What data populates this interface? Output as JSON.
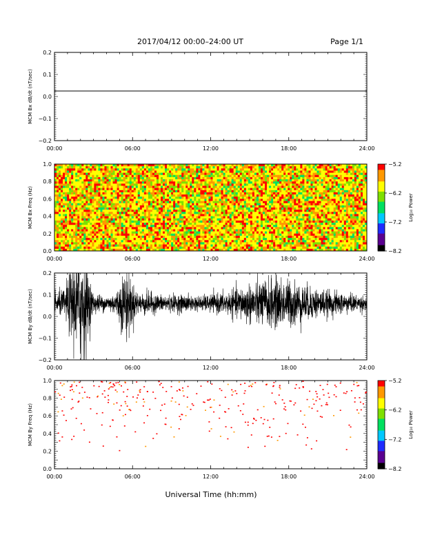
{
  "header": {
    "title": "2017/04/12  00:00–24:00 UT",
    "page_label": "Page 1/1"
  },
  "xaxis": {
    "label": "Universal Time (hh:mm)",
    "tick_labels": [
      "00:00",
      "06:00",
      "12:00",
      "18:00",
      "24:00"
    ],
    "tick_hours": [
      0,
      6,
      12,
      18,
      24
    ]
  },
  "colorscale": {
    "colors": [
      "#000000",
      "#5a0090",
      "#1f2cff",
      "#00c8ff",
      "#00e060",
      "#7fe000",
      "#ffff00",
      "#ff9900",
      "#ff0000"
    ]
  },
  "chart_data": [
    {
      "type": "line",
      "ylabel": "MCM Bx dB/dt (nT/sec)",
      "ylim": [
        -0.2,
        0.2
      ],
      "ytick_labels": [
        "0.2",
        "0.1",
        "0.0",
        "−0.1",
        "−0.2"
      ],
      "ytick_values": [
        0.2,
        0.1,
        0.0,
        -0.1,
        -0.2
      ],
      "x_range_hours": [
        0,
        24
      ],
      "series": [
        {
          "x": [
            0,
            24
          ],
          "y": [
            0.025,
            0.025
          ]
        }
      ]
    },
    {
      "type": "heatmap",
      "ylabel": "MCM Bx Freq (Hz)",
      "ylim": [
        0.0,
        1.0
      ],
      "ytick_labels": [
        "1.0",
        "0.8",
        "0.6",
        "0.4",
        "0.2",
        "0.0"
      ],
      "ytick_values": [
        1.0,
        0.8,
        0.6,
        0.4,
        0.2,
        0.0
      ],
      "x_range_hours": [
        0,
        24
      ],
      "colorbar": {
        "label": "Log₁₀ Power",
        "range": [
          -8.2,
          -5.2
        ],
        "tick_labels": [
          "−5.2",
          "−6.2",
          "−7.2",
          "−8.2"
        ],
        "tick_values": [
          -5.2,
          -6.2,
          -7.2,
          -8.2
        ]
      },
      "note": "dense mix of yellow, orange, red and green cells across all times and frequencies"
    },
    {
      "type": "line",
      "ylabel": "MCM By dB/dt (nT/sec)",
      "ylim": [
        -0.2,
        0.2
      ],
      "ytick_labels": [
        "0.2",
        "0.1",
        "0.0",
        "−0.1",
        "−0.2"
      ],
      "ytick_values": [
        0.2,
        0.1,
        0.0,
        -0.1,
        -0.2
      ],
      "x_range_hours": [
        0,
        24
      ],
      "series": [
        {
          "baseline": 0.06,
          "envelope": {
            "hours": [
              0,
              0.8,
              1.6,
              2.0,
              2.4,
              2.6,
              3.0,
              4.0,
              4.8,
              5.1,
              5.6,
              6.0,
              6.5,
              7.0,
              8.0,
              10.0,
              11.0,
              12.0,
              13.5,
              14.5,
              15.5,
              16.5,
              17.5,
              18.5,
              19.5,
              21.0,
              22.0,
              23.0,
              24.0
            ],
            "amplitude": [
              0.04,
              0.06,
              0.2,
              0.26,
              0.22,
              0.12,
              0.04,
              0.03,
              0.05,
              0.1,
              0.16,
              0.08,
              0.04,
              0.05,
              0.035,
              0.035,
              0.03,
              0.035,
              0.05,
              0.07,
              0.09,
              0.1,
              0.1,
              0.09,
              0.07,
              0.05,
              0.045,
              0.035,
              0.03
            ]
          }
        }
      ]
    },
    {
      "type": "heatmap",
      "ylabel": "MCM By Freq (Hz)",
      "ylim": [
        0.0,
        1.0
      ],
      "ytick_labels": [
        "1.0",
        "0.8",
        "0.6",
        "0.4",
        "0.2",
        "0.0"
      ],
      "ytick_values": [
        1.0,
        0.8,
        0.6,
        0.4,
        0.2,
        0.0
      ],
      "x_range_hours": [
        0,
        24
      ],
      "colorbar": {
        "label": "Log₁₀ Power",
        "range": [
          -8.2,
          -5.2
        ],
        "tick_labels": [
          "−5.2",
          "−6.2",
          "−7.2",
          "−8.2"
        ],
        "tick_values": [
          -5.2,
          -6.2,
          -7.2,
          -8.2
        ]
      },
      "note": "sparse scattered red and orange pixels, denser above 0.6 Hz"
    }
  ]
}
